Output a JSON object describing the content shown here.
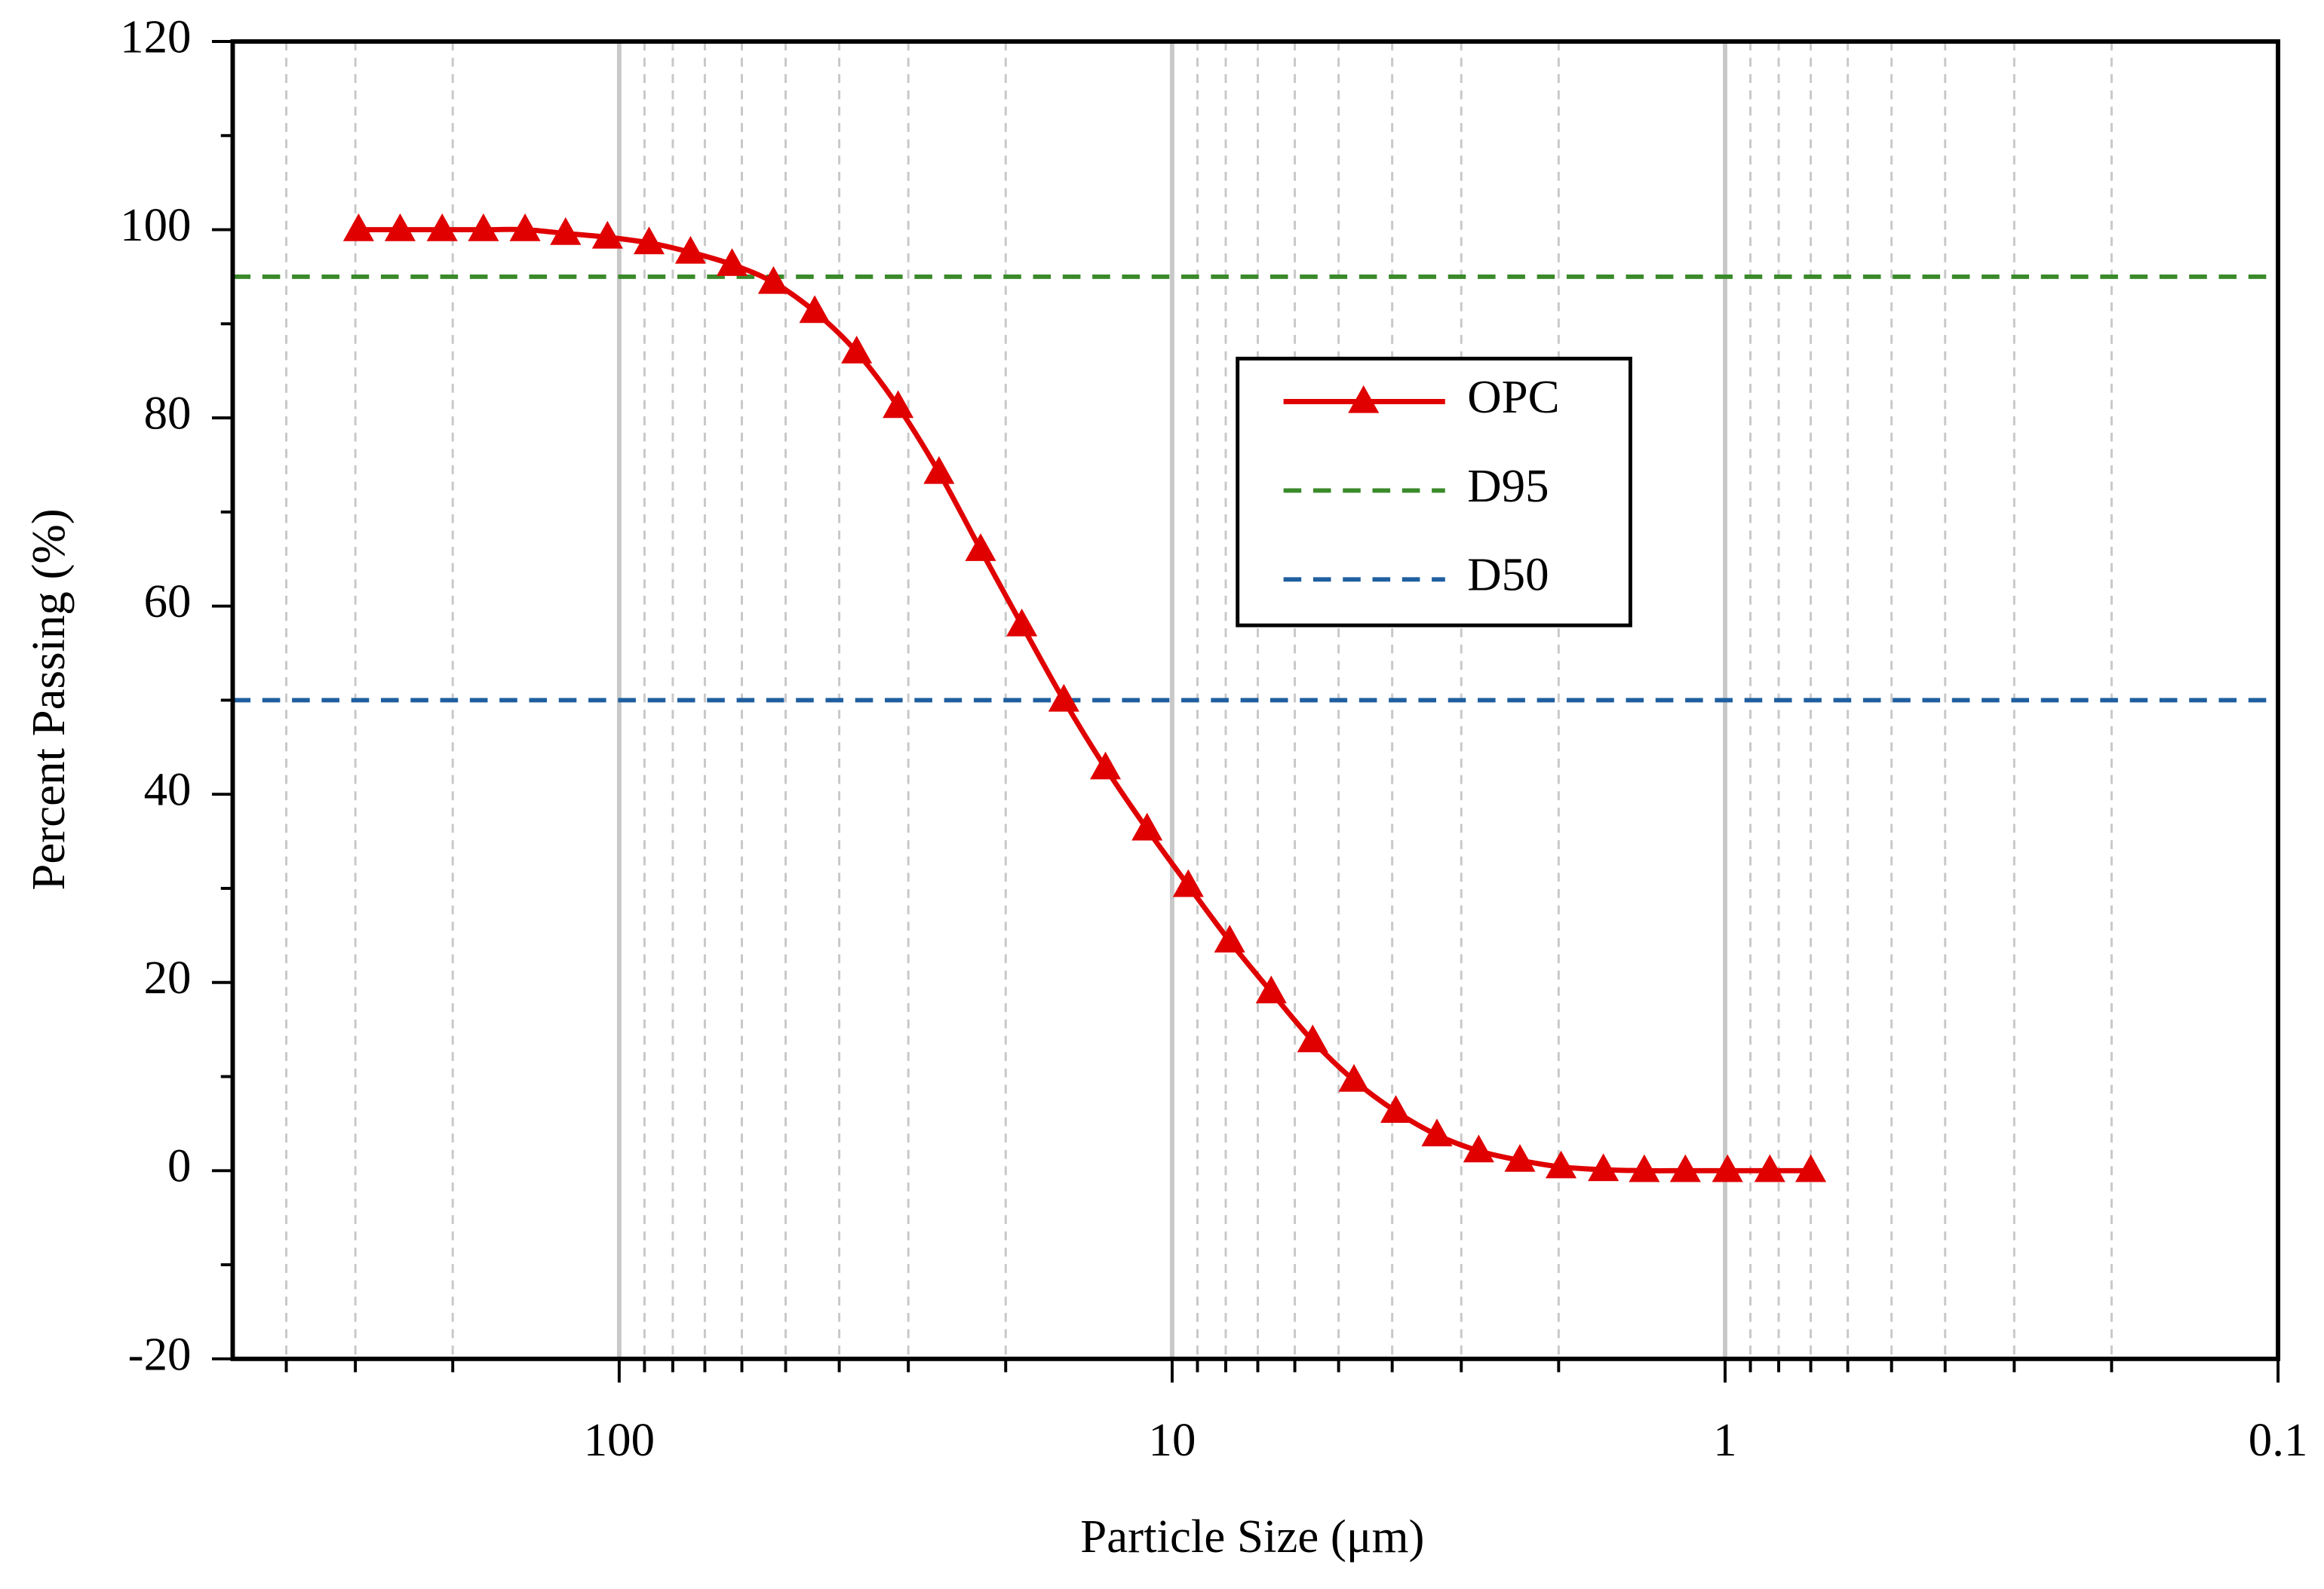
{
  "chart_data": {
    "type": "line",
    "xlabel": "Particle Size (μm)",
    "ylabel": "Percent Passing (%)",
    "xscale": "log",
    "xlim": [
      500,
      0.1
    ],
    "xticks": [
      100,
      10,
      1,
      0.1
    ],
    "xminorticks": [
      400,
      300,
      200,
      90,
      80,
      70,
      60,
      50,
      40,
      30,
      20,
      9,
      8,
      7,
      6,
      5,
      4,
      3,
      2,
      0.9,
      0.8,
      0.7,
      0.6,
      0.5,
      0.4,
      0.3,
      0.2
    ],
    "ylim": [
      -20,
      120
    ],
    "yticks": [
      -20,
      0,
      20,
      40,
      60,
      80,
      100,
      120
    ],
    "yminorticks": [
      -10,
      10,
      30,
      50,
      70,
      90,
      110
    ],
    "grid": true,
    "x": [
      296,
      249,
      209,
      176,
      148,
      125,
      105,
      88.3,
      74.3,
      62.5,
      52.6,
      44.3,
      37.2,
      31.3,
      26.4,
      22.2,
      18.7,
      15.7,
      13.2,
      11.1,
      9.35,
      7.87,
      6.62,
      5.57,
      4.69,
      3.94,
      3.32,
      2.79,
      2.35,
      1.98,
      1.66,
      1.4,
      1.18,
      0.99,
      0.83,
      0.7
    ],
    "series": [
      {
        "name": "OPC",
        "color": "#e00000",
        "marker": "triangle",
        "values": [
          100,
          100,
          100,
          100,
          100,
          99.6,
          99.2,
          98.6,
          97.6,
          96.3,
          94.4,
          91.3,
          87,
          81.2,
          74.2,
          66,
          58,
          50,
          42.8,
          36.3,
          30.3,
          24.4,
          19,
          13.8,
          9.6,
          6.3,
          3.8,
          2.1,
          1.1,
          0.4,
          0.1,
          0,
          0,
          0,
          0,
          0
        ]
      }
    ],
    "hlines": [
      {
        "name": "D95",
        "color": "#3a8a2a",
        "y": 95
      },
      {
        "name": "D50",
        "color": "#1f5fa0",
        "y": 50
      }
    ]
  }
}
